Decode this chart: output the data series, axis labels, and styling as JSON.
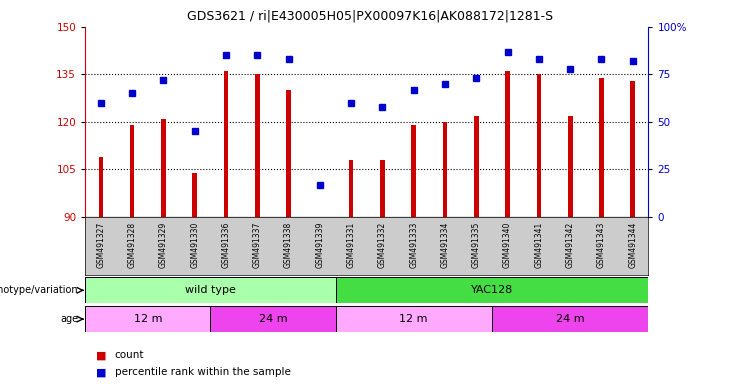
{
  "title": "GDS3621 / ri|E430005H05|PX00097K16|AK088172|1281-S",
  "samples": [
    "GSM491327",
    "GSM491328",
    "GSM491329",
    "GSM491330",
    "GSM491336",
    "GSM491337",
    "GSM491338",
    "GSM491339",
    "GSM491331",
    "GSM491332",
    "GSM491333",
    "GSM491334",
    "GSM491335",
    "GSM491340",
    "GSM491341",
    "GSM491342",
    "GSM491343",
    "GSM491344"
  ],
  "counts": [
    109,
    119,
    121,
    104,
    136,
    135,
    130,
    90,
    108,
    108,
    119,
    120,
    122,
    136,
    135,
    122,
    134,
    133
  ],
  "percentiles": [
    60,
    65,
    72,
    45,
    85,
    85,
    83,
    17,
    60,
    58,
    67,
    70,
    73,
    87,
    83,
    78,
    83,
    82
  ],
  "ylim_left": [
    90,
    150
  ],
  "ylim_right": [
    0,
    100
  ],
  "yticks_left": [
    90,
    105,
    120,
    135,
    150
  ],
  "yticks_right": [
    0,
    25,
    50,
    75,
    100
  ],
  "bar_color": "#cc0000",
  "dot_color": "#0000cc",
  "bg_color": "#ffffff",
  "genotype_groups": [
    {
      "label": "wild type",
      "start": 0,
      "end": 8,
      "color": "#aaffaa"
    },
    {
      "label": "YAC128",
      "start": 8,
      "end": 18,
      "color": "#44dd44"
    }
  ],
  "age_groups": [
    {
      "label": "12 m",
      "start": 0,
      "end": 4,
      "color": "#ffaaff"
    },
    {
      "label": "24 m",
      "start": 4,
      "end": 8,
      "color": "#ee44ee"
    },
    {
      "label": "12 m",
      "start": 8,
      "end": 13,
      "color": "#ffaaff"
    },
    {
      "label": "24 m",
      "start": 13,
      "end": 18,
      "color": "#ee44ee"
    }
  ],
  "legend_count_color": "#cc0000",
  "legend_pct_color": "#0000cc",
  "xlabel_genotype": "genotype/variation",
  "xlabel_age": "age",
  "grid_yticks": [
    105,
    120,
    135
  ]
}
